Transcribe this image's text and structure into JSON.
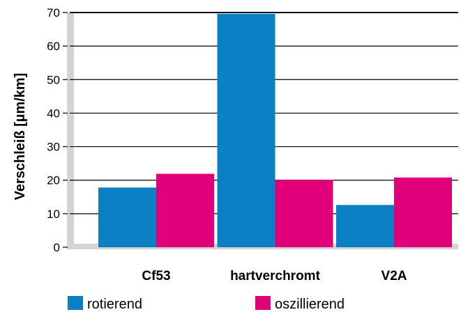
{
  "chart_data": {
    "type": "bar",
    "title": "",
    "xlabel": "",
    "ylabel": "Verschleiß [µm/km]",
    "ylim": [
      0,
      70
    ],
    "yticks": [
      0,
      10,
      20,
      30,
      40,
      50,
      60,
      70
    ],
    "categories": [
      "Cf53",
      "hartverchromt",
      "V2A"
    ],
    "series": [
      {
        "name": "rotierend",
        "color": "#0a7fc4",
        "values": [
          17.8,
          69.6,
          12.6
        ]
      },
      {
        "name": "oszillierend",
        "color": "#e0007a",
        "values": [
          21.9,
          20.1,
          20.8
        ]
      }
    ],
    "grid": true,
    "legend": "bottom"
  }
}
